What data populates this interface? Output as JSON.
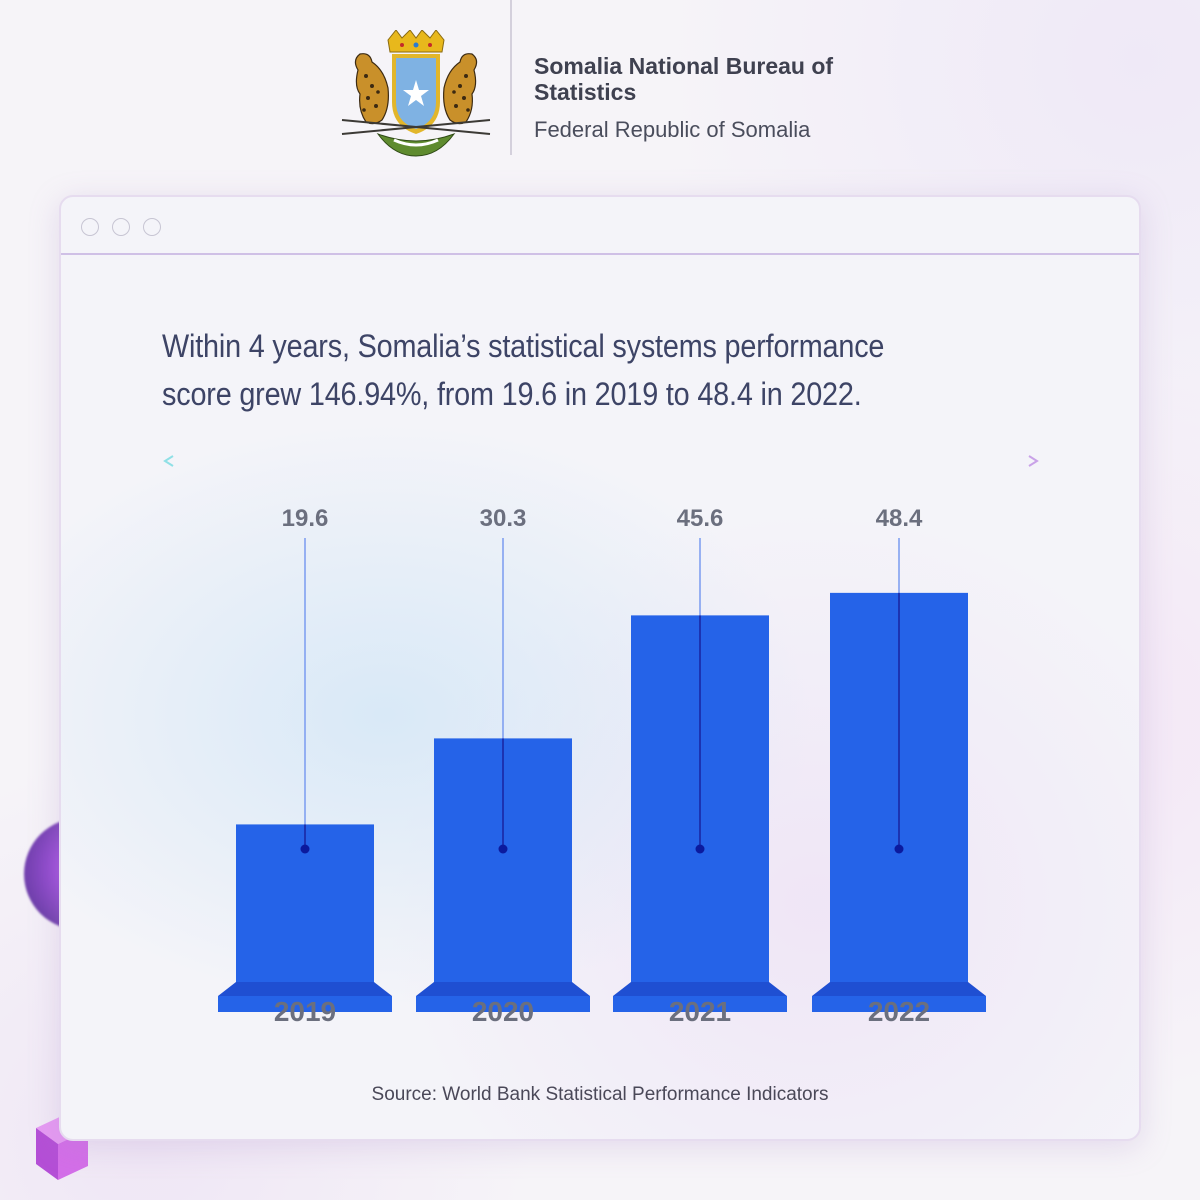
{
  "header": {
    "org_name": "Somalia National Bureau of Statistics",
    "org_sub": "Federal Republic of Somalia"
  },
  "headline": "Within 4 years, Somalia’s statistical systems performance score grew 146.94%, from 19.6 in 2019 to 48.4 in 2022.",
  "source": "Source: World Bank Statistical Performance Indicators",
  "colors": {
    "bar": "#2563e8",
    "bar_base": "#1f4fd2",
    "label_text": "#6b6f7e",
    "leader_line": "#7a9bf0",
    "marker": "#0b1a9e"
  },
  "chart_data": {
    "type": "bar",
    "categories": [
      "2019",
      "2020",
      "2021",
      "2022"
    ],
    "values": [
      19.6,
      30.3,
      45.6,
      48.4
    ],
    "data_labels": [
      "19.6",
      "30.3",
      "45.6",
      "48.4"
    ],
    "title": "",
    "xlabel": "",
    "ylabel": "",
    "ylim": [
      0,
      50
    ],
    "grid": false,
    "legend": "none"
  }
}
